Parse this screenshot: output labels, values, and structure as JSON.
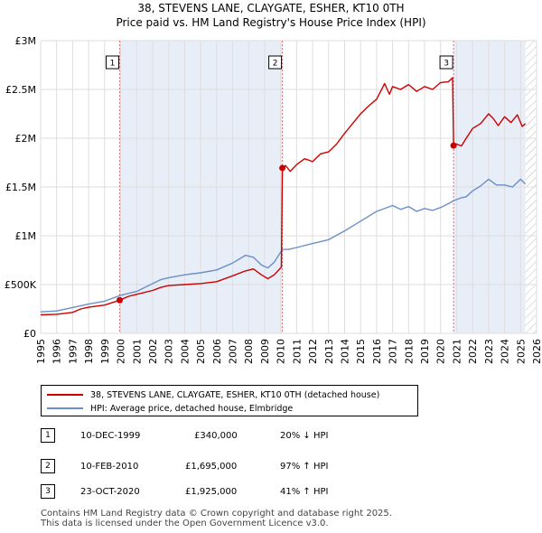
{
  "title_line1": "38, STEVENS LANE, CLAYGATE, ESHER, KT10 0TH",
  "title_line2": "Price paid vs. HM Land Registry's House Price Index (HPI)",
  "chart_data": {
    "type": "line",
    "xlim": [
      1995,
      2026
    ],
    "ylim": [
      0,
      3000000
    ],
    "y_ticks": [
      {
        "value": 0,
        "label": "£0"
      },
      {
        "value": 500000,
        "label": "£500K"
      },
      {
        "value": 1000000,
        "label": "£1M"
      },
      {
        "value": 1500000,
        "label": "£1.5M"
      },
      {
        "value": 2000000,
        "label": "£2M"
      },
      {
        "value": 2500000,
        "label": "£2.5M"
      },
      {
        "value": 3000000,
        "label": "£3M"
      }
    ],
    "x_ticks": [
      "1995",
      "1996",
      "1997",
      "1998",
      "1999",
      "2000",
      "2001",
      "2002",
      "2003",
      "2004",
      "2005",
      "2006",
      "2007",
      "2008",
      "2009",
      "2010",
      "2011",
      "2012",
      "2013",
      "2014",
      "2015",
      "2016",
      "2017",
      "2018",
      "2019",
      "2020",
      "2021",
      "2022",
      "2023",
      "2024",
      "2025",
      "2026"
    ],
    "colors": {
      "property": "#cc0000",
      "hpi": "#6a8fc8",
      "shade": "#e8eef8",
      "vline": "#e07070"
    },
    "shaded_periods": [
      [
        1999.94,
        2010.11
      ],
      [
        2020.81,
        2025.3
      ]
    ],
    "future_hatch_from": 2025.3,
    "series": [
      {
        "name": "38, STEVENS LANE, CLAYGATE, ESHER, KT10 0TH (detached house)",
        "color": "#cc0000",
        "points": [
          [
            1995.0,
            190000
          ],
          [
            1996.0,
            195000
          ],
          [
            1997.0,
            215000
          ],
          [
            1997.5,
            250000
          ],
          [
            1998.0,
            268000
          ],
          [
            1999.0,
            290000
          ],
          [
            1999.94,
            340000
          ],
          [
            2000.5,
            380000
          ],
          [
            2001.0,
            400000
          ],
          [
            2002.0,
            440000
          ],
          [
            2002.5,
            470000
          ],
          [
            2003.0,
            490000
          ],
          [
            2004.0,
            500000
          ],
          [
            2005.0,
            510000
          ],
          [
            2006.0,
            530000
          ],
          [
            2007.0,
            590000
          ],
          [
            2007.8,
            640000
          ],
          [
            2008.3,
            660000
          ],
          [
            2008.8,
            600000
          ],
          [
            2009.2,
            560000
          ],
          [
            2009.6,
            600000
          ],
          [
            2010.05,
            680000
          ],
          [
            2010.11,
            1695000
          ],
          [
            2010.3,
            1720000
          ],
          [
            2010.6,
            1660000
          ],
          [
            2011.0,
            1730000
          ],
          [
            2011.5,
            1790000
          ],
          [
            2012.0,
            1760000
          ],
          [
            2012.5,
            1840000
          ],
          [
            2013.0,
            1860000
          ],
          [
            2013.5,
            1940000
          ],
          [
            2014.0,
            2050000
          ],
          [
            2014.5,
            2150000
          ],
          [
            2015.0,
            2250000
          ],
          [
            2015.5,
            2330000
          ],
          [
            2016.0,
            2400000
          ],
          [
            2016.5,
            2560000
          ],
          [
            2016.8,
            2450000
          ],
          [
            2017.0,
            2530000
          ],
          [
            2017.5,
            2500000
          ],
          [
            2018.0,
            2550000
          ],
          [
            2018.5,
            2480000
          ],
          [
            2019.0,
            2530000
          ],
          [
            2019.5,
            2500000
          ],
          [
            2020.0,
            2570000
          ],
          [
            2020.5,
            2580000
          ],
          [
            2020.75,
            2620000
          ],
          [
            2020.81,
            1925000
          ],
          [
            2021.0,
            1940000
          ],
          [
            2021.3,
            1920000
          ],
          [
            2021.6,
            2000000
          ],
          [
            2022.0,
            2100000
          ],
          [
            2022.5,
            2150000
          ],
          [
            2023.0,
            2250000
          ],
          [
            2023.3,
            2200000
          ],
          [
            2023.6,
            2130000
          ],
          [
            2024.0,
            2220000
          ],
          [
            2024.4,
            2160000
          ],
          [
            2024.8,
            2240000
          ],
          [
            2025.1,
            2120000
          ],
          [
            2025.3,
            2150000
          ]
        ]
      },
      {
        "name": "HPI: Average price, detached house, Elmbridge",
        "color": "#6a8fc8",
        "points": [
          [
            1995.0,
            220000
          ],
          [
            1996.0,
            230000
          ],
          [
            1997.0,
            265000
          ],
          [
            1998.0,
            300000
          ],
          [
            1999.0,
            330000
          ],
          [
            2000.0,
            390000
          ],
          [
            2001.0,
            430000
          ],
          [
            2002.0,
            510000
          ],
          [
            2002.5,
            550000
          ],
          [
            2003.0,
            570000
          ],
          [
            2004.0,
            600000
          ],
          [
            2005.0,
            620000
          ],
          [
            2006.0,
            650000
          ],
          [
            2007.0,
            720000
          ],
          [
            2007.8,
            800000
          ],
          [
            2008.3,
            780000
          ],
          [
            2008.8,
            700000
          ],
          [
            2009.2,
            670000
          ],
          [
            2009.6,
            730000
          ],
          [
            2010.11,
            860000
          ],
          [
            2010.5,
            860000
          ],
          [
            2011.0,
            880000
          ],
          [
            2012.0,
            920000
          ],
          [
            2013.0,
            960000
          ],
          [
            2014.0,
            1050000
          ],
          [
            2015.0,
            1150000
          ],
          [
            2016.0,
            1250000
          ],
          [
            2017.0,
            1310000
          ],
          [
            2017.5,
            1270000
          ],
          [
            2018.0,
            1300000
          ],
          [
            2018.5,
            1250000
          ],
          [
            2019.0,
            1280000
          ],
          [
            2019.5,
            1260000
          ],
          [
            2020.0,
            1290000
          ],
          [
            2020.5,
            1330000
          ],
          [
            2020.81,
            1360000
          ],
          [
            2021.3,
            1390000
          ],
          [
            2021.6,
            1400000
          ],
          [
            2022.0,
            1460000
          ],
          [
            2022.5,
            1510000
          ],
          [
            2023.0,
            1580000
          ],
          [
            2023.5,
            1520000
          ],
          [
            2024.0,
            1520000
          ],
          [
            2024.5,
            1500000
          ],
          [
            2025.0,
            1580000
          ],
          [
            2025.3,
            1530000
          ]
        ]
      }
    ],
    "markers": [
      {
        "label": "1",
        "x": 1999.94,
        "y": 340000
      },
      {
        "label": "2",
        "x": 2010.11,
        "y": 1695000
      },
      {
        "label": "3",
        "x": 2020.81,
        "y": 1925000
      }
    ]
  },
  "legend": {
    "property_label": "38, STEVENS LANE, CLAYGATE, ESHER, KT10 0TH (detached house)",
    "hpi_label": "HPI: Average price, detached house, Elmbridge"
  },
  "transactions": [
    {
      "num": "1",
      "date": "10-DEC-1999",
      "price": "£340,000",
      "hpi": "20% ↓ HPI"
    },
    {
      "num": "2",
      "date": "10-FEB-2010",
      "price": "£1,695,000",
      "hpi": "97% ↑ HPI"
    },
    {
      "num": "3",
      "date": "23-OCT-2020",
      "price": "£1,925,000",
      "hpi": "41% ↑ HPI"
    }
  ],
  "footer_line1": "Contains HM Land Registry data © Crown copyright and database right 2025.",
  "footer_line2": "This data is licensed under the Open Government Licence v3.0."
}
